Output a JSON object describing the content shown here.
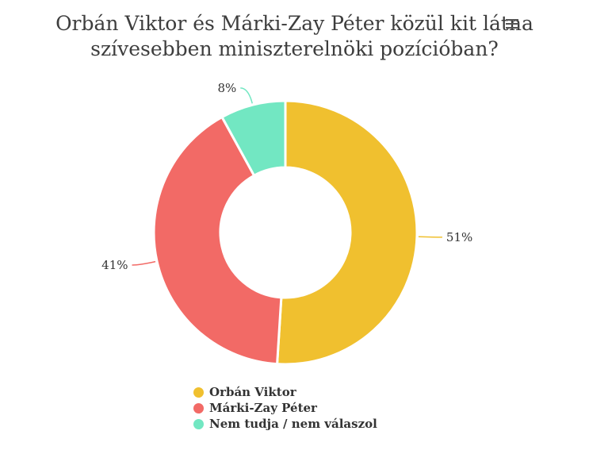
{
  "title_lines": [
    "Orbán Viktor és Márki-Zay Péter közül kit látna",
    "szívesebben miniszterelnöki pozícióban?"
  ],
  "menu_icon": "hamburger-menu-icon",
  "chart_data": {
    "type": "pie",
    "donut": true,
    "title": "Orbán Viktor és Márki-Zay Péter közül kit látna szívesebben miniszterelnöki pozícióban?",
    "slices": [
      {
        "name": "Orbán Viktor",
        "value": 51,
        "label": "51%",
        "color": "#f0c02f"
      },
      {
        "name": "Márki-Zay Péter",
        "value": 41,
        "label": "41%",
        "color": "#f26a66"
      },
      {
        "name": "Nem tudja / nem válaszol",
        "value": 8,
        "label": "8%",
        "color": "#72e7c2"
      }
    ],
    "legend_position": "bottom"
  }
}
